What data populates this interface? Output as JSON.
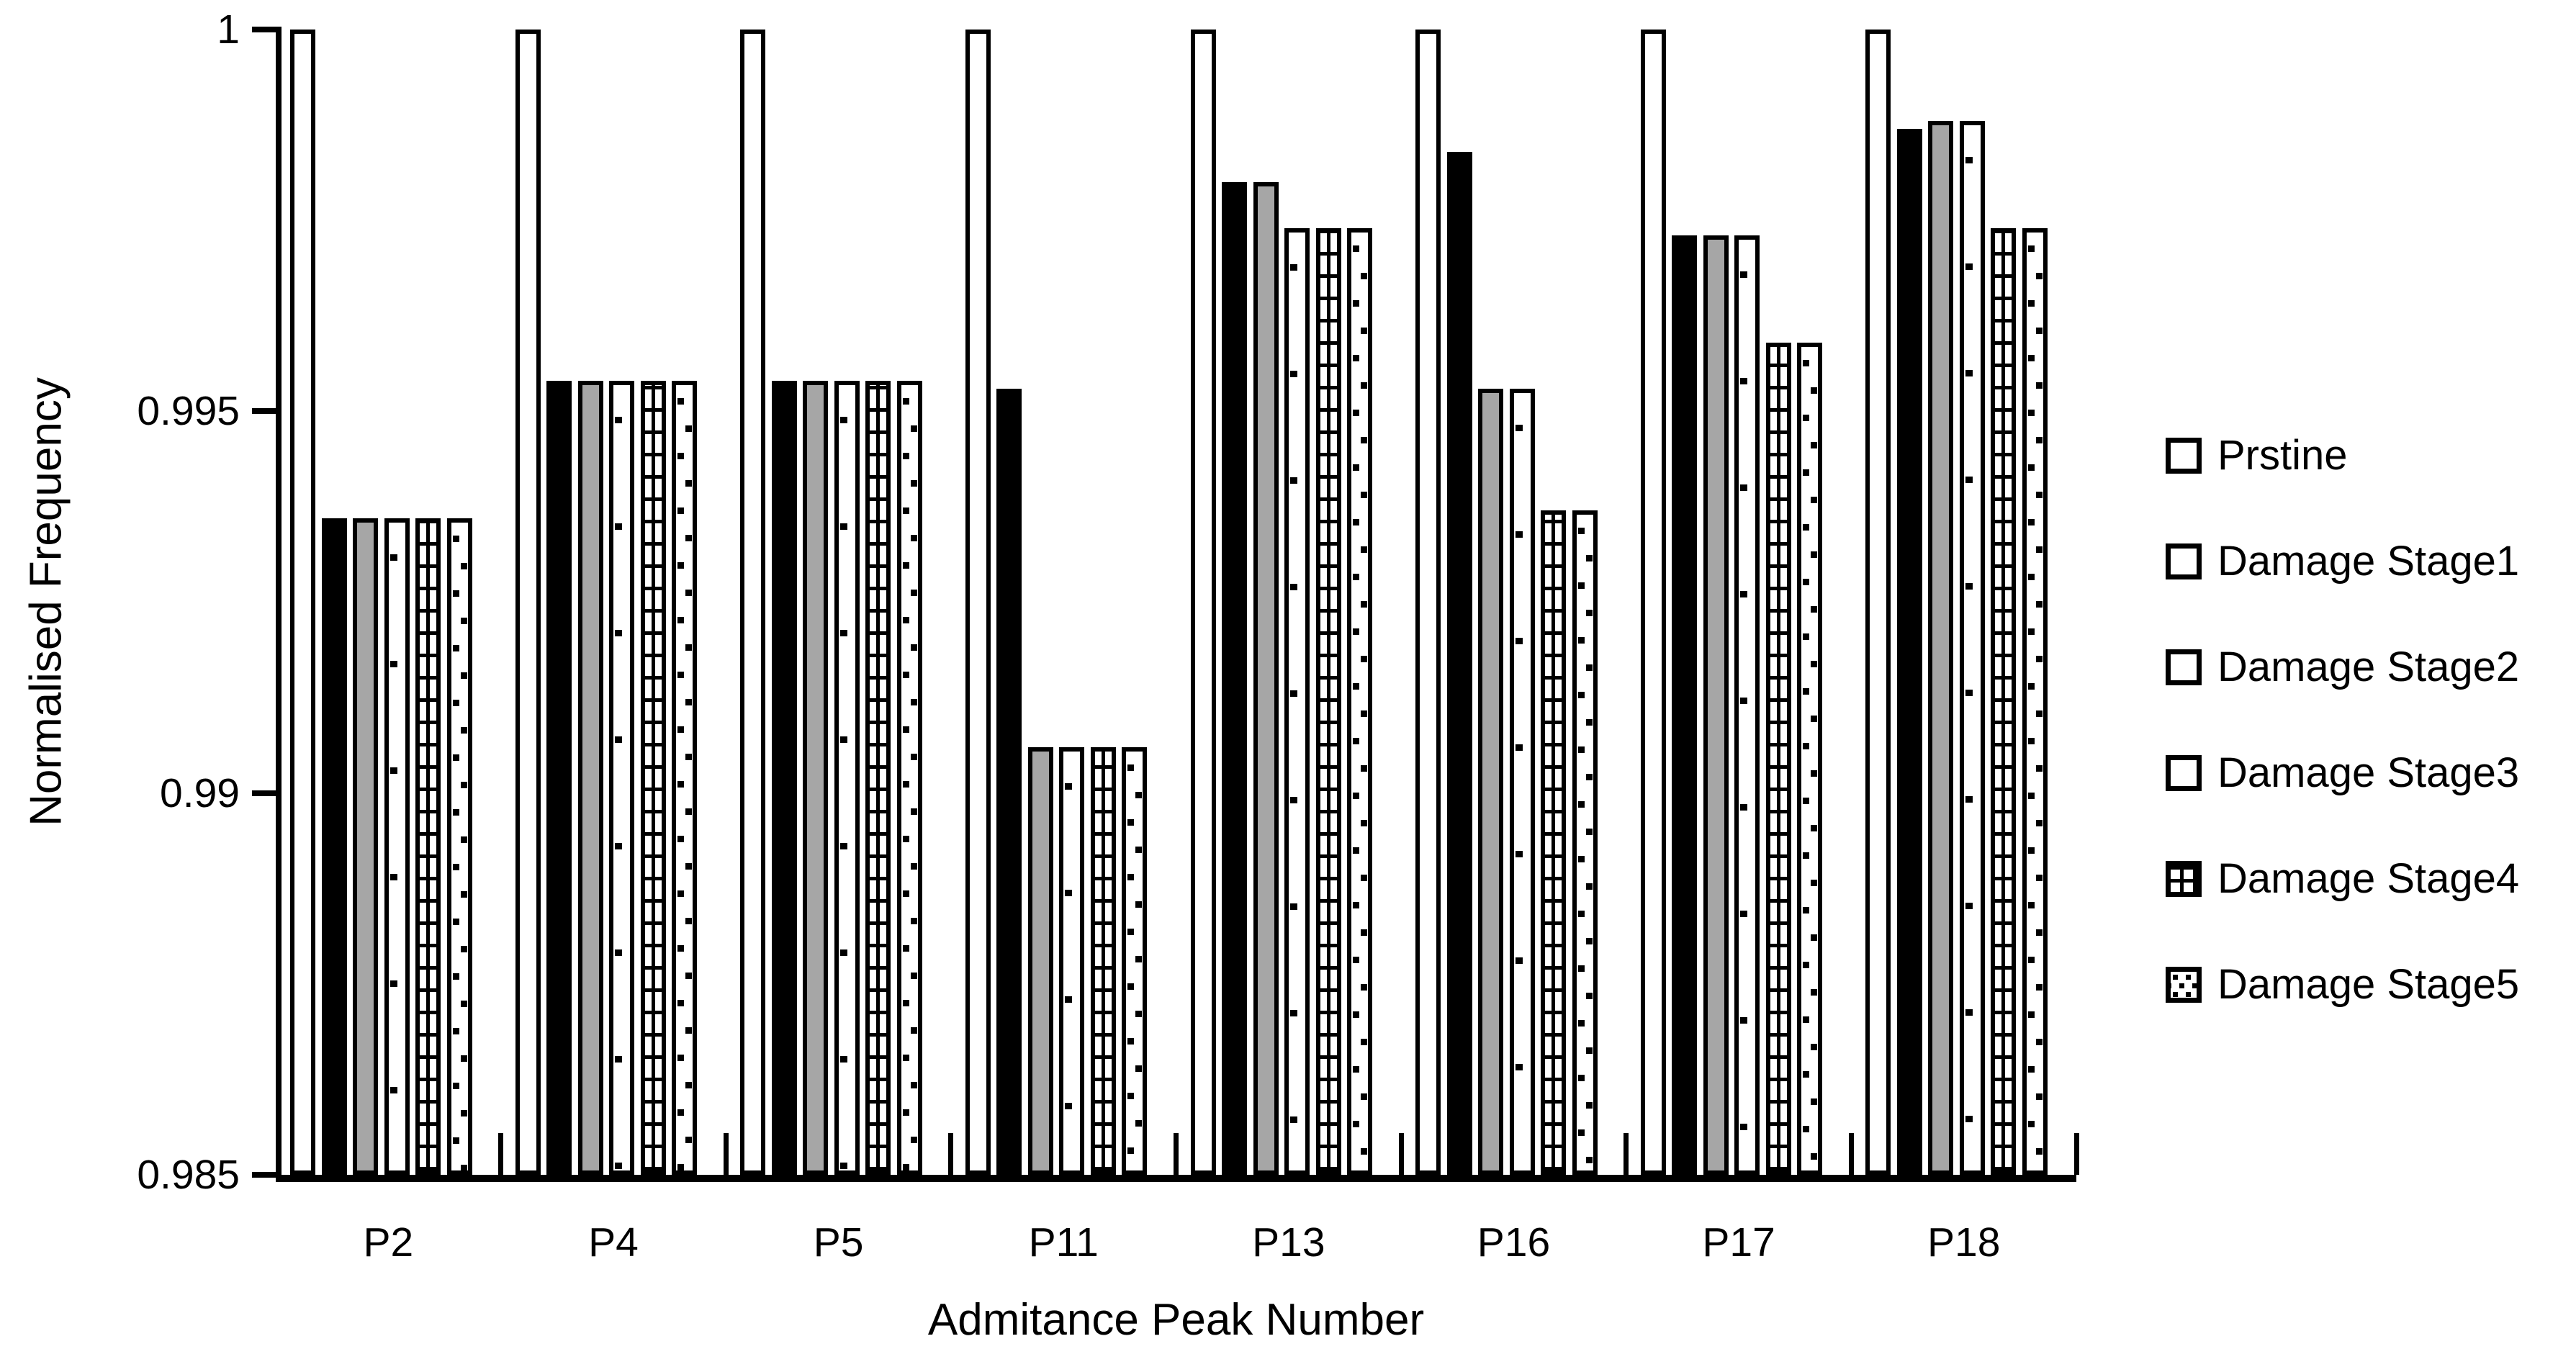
{
  "figure": {
    "y_tick_labels": [
      "1",
      "0.995",
      "0.99",
      "0.985"
    ],
    "y_tick_values": [
      1,
      0.995,
      0.99,
      0.985
    ],
    "background": "#ffffff",
    "axis_color": "#000000"
  },
  "chart_data": {
    "type": "bar",
    "title": "",
    "xlabel": "Admitance Peak Number",
    "ylabel": "Normalised Frequency",
    "ylim": [
      0.985,
      1.0
    ],
    "yticks": [
      1,
      0.995,
      0.99,
      0.985
    ],
    "grid": false,
    "legend_position": "right",
    "categories": [
      "P2",
      "P4",
      "P5",
      "P11",
      "P13",
      "P16",
      "P17",
      "P18"
    ],
    "series": [
      {
        "name": "Prstine",
        "pattern": "white",
        "values": [
          1,
          1,
          1,
          1,
          1,
          1,
          1,
          1
        ]
      },
      {
        "name": "Damage Stage1",
        "pattern": "black",
        "values": [
          0.9936,
          0.9954,
          0.9954,
          0.9953,
          0.998,
          0.9984,
          0.9973,
          0.9987
        ]
      },
      {
        "name": "Damage Stage2",
        "pattern": "gray",
        "values": [
          0.9936,
          0.9954,
          0.9954,
          0.9906,
          0.998,
          0.9953,
          0.9973,
          0.9988
        ]
      },
      {
        "name": "Damage Stage3",
        "pattern": "dash",
        "values": [
          0.9936,
          0.9954,
          0.9954,
          0.9906,
          0.9974,
          0.9953,
          0.9973,
          0.9988
        ]
      },
      {
        "name": "Damage Stage4",
        "pattern": "grid",
        "values": [
          0.9936,
          0.9954,
          0.9954,
          0.9906,
          0.9974,
          0.9937,
          0.9959,
          0.9974
        ]
      },
      {
        "name": "Damage Stage5",
        "pattern": "dot",
        "values": [
          0.9936,
          0.9954,
          0.9954,
          0.9906,
          0.9974,
          0.9937,
          0.9959,
          0.9974
        ]
      }
    ],
    "colors": {
      "black": "#000000",
      "gray": "#a6a6a6",
      "white": "#ffffff"
    }
  }
}
